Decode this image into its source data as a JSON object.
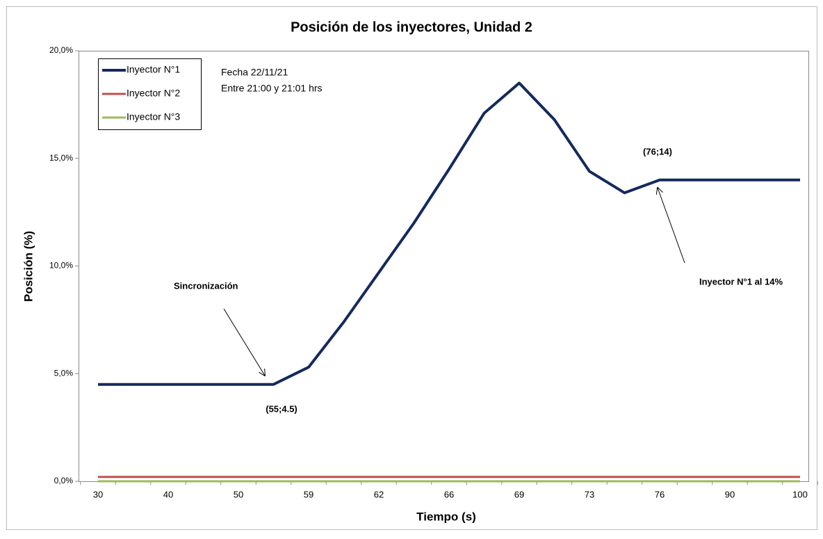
{
  "chart_data": {
    "type": "line",
    "title": "Posición de los inyectores, Unidad 2",
    "x_label": "Tiempo (s)",
    "y_label": "Posición (%)",
    "categories": [
      "30",
      null,
      "40",
      null,
      "50",
      null,
      "59",
      null,
      "62",
      null,
      "66",
      null,
      "69",
      null,
      "73",
      null,
      "76",
      null,
      "90",
      null,
      "100"
    ],
    "series": [
      {
        "name": "Inyector N°1",
        "color": "#152a5c",
        "values": [
          4.5,
          4.5,
          4.5,
          4.5,
          4.5,
          4.5,
          5.3,
          7.4,
          9.7,
          12.0,
          14.5,
          17.1,
          18.5,
          16.8,
          14.4,
          13.4,
          14.0,
          14.0,
          14.0,
          14.0,
          14.0
        ]
      },
      {
        "name": "Inyector N°2",
        "color": "#c0504d",
        "values": [
          0.2,
          0.2,
          0.2,
          0.2,
          0.2,
          0.2,
          0.2,
          0.2,
          0.2,
          0.2,
          0.2,
          0.2,
          0.2,
          0.2,
          0.2,
          0.2,
          0.2,
          0.2,
          0.2,
          0.2,
          0.2
        ]
      },
      {
        "name": "Inyector N°3",
        "color": "#9bbb59",
        "values": [
          0,
          0,
          0,
          0,
          0,
          0,
          0,
          0,
          0,
          0,
          0,
          0,
          0,
          0,
          0,
          0,
          0,
          0,
          0,
          0,
          0
        ]
      }
    ],
    "ylim": [
      0,
      20
    ],
    "yticks": [
      {
        "value": 0,
        "label": "0,0%"
      },
      {
        "value": 5,
        "label": "5,0%"
      },
      {
        "value": 10,
        "label": "10,0%"
      },
      {
        "value": 15,
        "label": "15,0%"
      },
      {
        "value": 20,
        "label": "20,0%"
      }
    ],
    "grid": false,
    "legend": "upper left",
    "notes": [
      "Fecha 22/11/21",
      "Entre 21:00 y 21:01 hrs"
    ],
    "annotations": [
      "Sincronización",
      "(55;4.5)",
      "(76;14)",
      "Inyector N°1 al 14%"
    ]
  }
}
